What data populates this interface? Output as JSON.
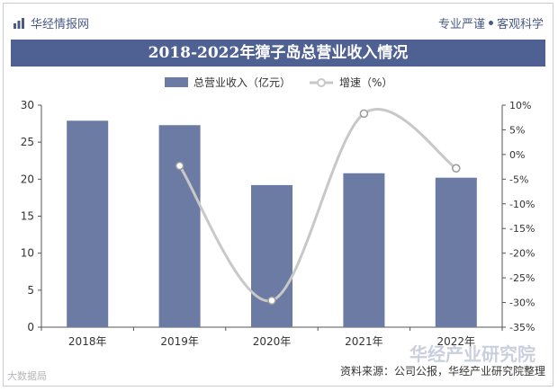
{
  "header": {
    "brand": "华经情报网",
    "tagline_left": "专业严谨",
    "tagline_right": "客观科学"
  },
  "watermarks": {
    "bottom_right": "华经产业研究院",
    "bottom_left": "大数据局"
  },
  "source": "资料来源：公司公报，华经产业研究院整理",
  "colors": {
    "bar": "#6b7ba3",
    "line": "#c8c8c8",
    "title_bg": "#4e6192",
    "brand": "#4a5a85"
  },
  "chart_data": {
    "type": "bar",
    "title": "2018-2022年獐子岛总营业收入情况",
    "categories": [
      "2018年",
      "2019年",
      "2020年",
      "2021年",
      "2022年"
    ],
    "series": [
      {
        "name": "总营业收入（亿元）",
        "type": "bar",
        "axis": "left",
        "values": [
          27.9,
          27.3,
          19.2,
          20.8,
          20.2
        ]
      },
      {
        "name": "增速（%）",
        "type": "line",
        "axis": "right",
        "values": [
          null,
          -2.3,
          -29.6,
          8.3,
          -2.8
        ]
      }
    ],
    "y_left": {
      "min": 0,
      "max": 30,
      "ticks": [
        0,
        5,
        10,
        15,
        20,
        25,
        30
      ]
    },
    "y_right": {
      "min": -35,
      "max": 10,
      "ticks": [
        "10%",
        "5%",
        "0%",
        "-5%",
        "-10%",
        "-15%",
        "-20%",
        "-25%",
        "-30%",
        "-35%"
      ]
    },
    "legend_position": "top-center",
    "grid": false
  }
}
